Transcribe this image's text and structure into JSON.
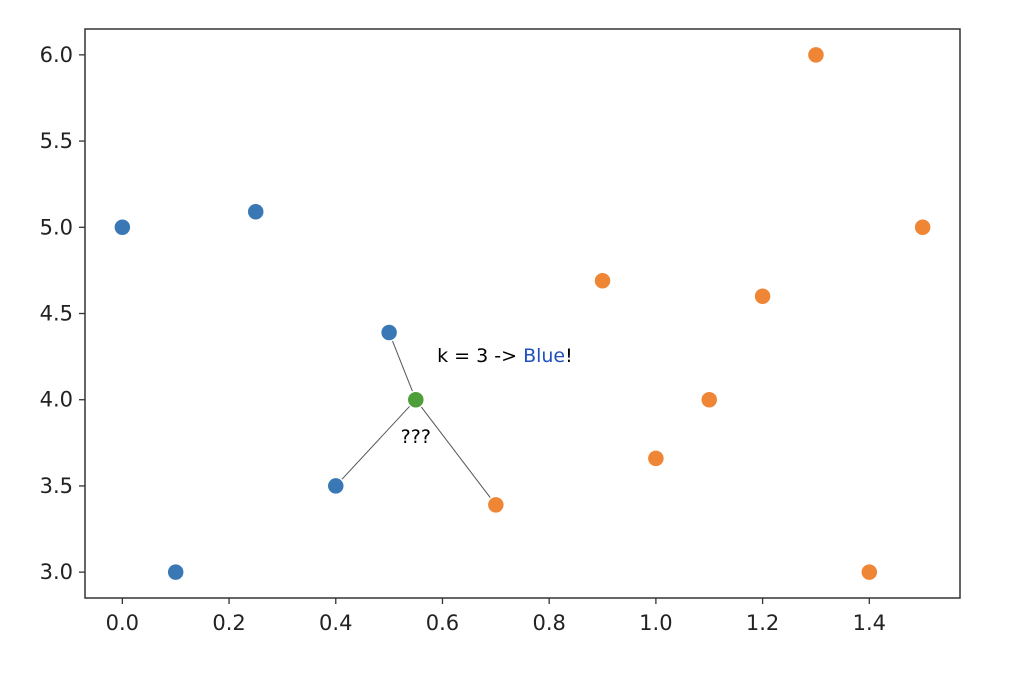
{
  "chart_data": {
    "type": "scatter",
    "title": "",
    "xlabel": "",
    "ylabel": "",
    "xlim": [
      -0.07,
      1.57
    ],
    "ylim": [
      2.85,
      6.15
    ],
    "xticks": [
      "0.0",
      "0.2",
      "0.4",
      "0.6",
      "0.8",
      "1.0",
      "1.2",
      "1.4"
    ],
    "yticks": [
      "3.0",
      "3.5",
      "4.0",
      "4.5",
      "5.0",
      "5.5",
      "6.0"
    ],
    "xtick_values": [
      0.0,
      0.2,
      0.4,
      0.6,
      0.8,
      1.0,
      1.2,
      1.4
    ],
    "ytick_values": [
      3.0,
      3.5,
      4.0,
      4.5,
      5.0,
      5.5,
      6.0
    ],
    "grid": false,
    "series": [
      {
        "color": "#3a78b5",
        "points": [
          {
            "x": 0.0,
            "y": 5.0
          },
          {
            "x": 0.1,
            "y": 3.0
          },
          {
            "x": 0.25,
            "y": 5.09
          },
          {
            "x": 0.4,
            "y": 3.5
          },
          {
            "x": 0.5,
            "y": 4.39
          }
        ]
      },
      {
        "color": "#ef8636",
        "points": [
          {
            "x": 0.7,
            "y": 3.39
          },
          {
            "x": 0.9,
            "y": 4.69
          },
          {
            "x": 1.0,
            "y": 3.66
          },
          {
            "x": 1.1,
            "y": 4.0
          },
          {
            "x": 1.2,
            "y": 4.6
          },
          {
            "x": 1.3,
            "y": 6.0
          },
          {
            "x": 1.4,
            "y": 3.0
          },
          {
            "x": 1.5,
            "y": 5.0
          }
        ]
      }
    ],
    "query_point": {
      "x": 0.55,
      "y": 4.0,
      "color": "#4e9e3a"
    },
    "neighbor_lines": [
      {
        "x": 0.5,
        "y": 4.39
      },
      {
        "x": 0.4,
        "y": 3.5
      },
      {
        "x": 0.7,
        "y": 3.39
      }
    ],
    "annotations": {
      "question": {
        "text": "???",
        "x": 0.55,
        "y": 3.75
      },
      "result": {
        "x": 0.59,
        "y": 4.22,
        "prefix": "k = 3 -> ",
        "highlight": "Blue",
        "highlight_color": "#2050c0",
        "suffix": "!"
      }
    },
    "colors": {
      "blue": "#3a78b5",
      "orange": "#ef8636",
      "green": "#4e9e3a",
      "line": "#555555",
      "axis": "#333333"
    }
  }
}
